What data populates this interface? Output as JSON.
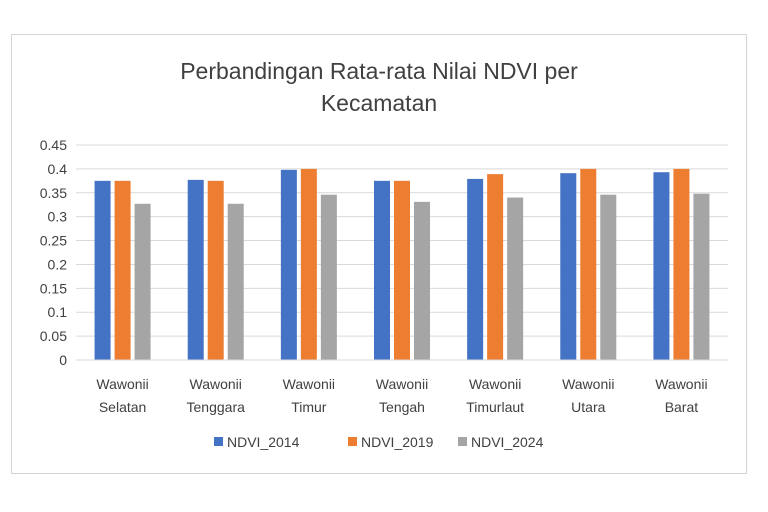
{
  "chart_data": {
    "type": "bar",
    "title": "Perbandingan Rata-rata Nilai NDVI per\nKecamatan",
    "categories": [
      [
        "Wawonii",
        "Selatan"
      ],
      [
        "Wawonii",
        "Tenggara"
      ],
      [
        "Wawonii",
        "Timur"
      ],
      [
        "Wawonii",
        "Tengah"
      ],
      [
        "Wawonii",
        "Timurlaut"
      ],
      [
        "Wawonii",
        "Utara"
      ],
      [
        "Wawonii",
        "Barat"
      ]
    ],
    "series": [
      {
        "name": "NDVI_2014",
        "color": "#4472C4",
        "values": [
          0.375,
          0.377,
          0.398,
          0.375,
          0.379,
          0.391,
          0.393
        ]
      },
      {
        "name": "NDVI_2019",
        "color": "#ED7D31",
        "values": [
          0.375,
          0.375,
          0.4,
          0.375,
          0.389,
          0.4,
          0.4
        ]
      },
      {
        "name": "NDVI_2024",
        "color": "#A5A5A5",
        "values": [
          0.327,
          0.327,
          0.346,
          0.331,
          0.34,
          0.346,
          0.348
        ]
      }
    ],
    "yticks": [
      "0",
      "0.05",
      "0.1",
      "0.15",
      "0.2",
      "0.25",
      "0.3",
      "0.35",
      "0.4",
      "0.45"
    ],
    "ylim": [
      0,
      0.45
    ],
    "grid": true,
    "legend_position": "bottom"
  }
}
